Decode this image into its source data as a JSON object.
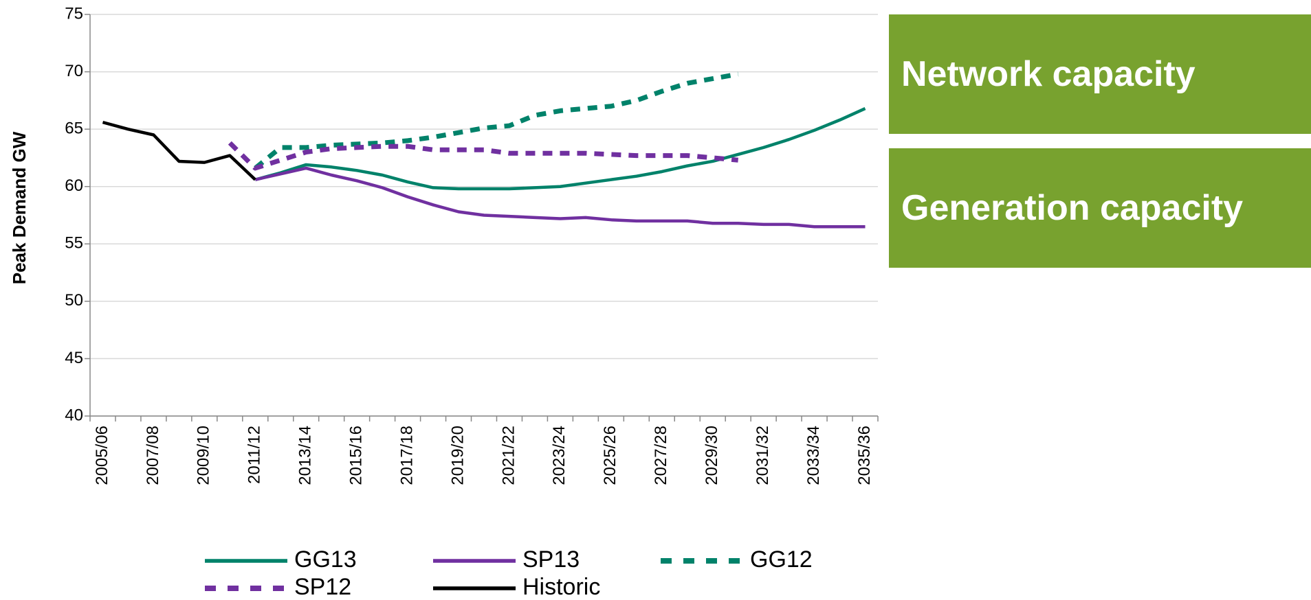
{
  "chart_data": {
    "type": "line",
    "ylabel": "Peak Demand GW",
    "categories": [
      "2005/06",
      null,
      "2007/08",
      null,
      "2009/10",
      null,
      "2011/12",
      null,
      "2013/14",
      null,
      "2015/16",
      null,
      "2017/18",
      null,
      "2019/20",
      null,
      "2021/22",
      null,
      "2023/24",
      null,
      "2025/26",
      null,
      "2027/28",
      null,
      "2029/30",
      null,
      "2031/32",
      null,
      "2033/34",
      null,
      "2035/36"
    ],
    "ylim": [
      40,
      75
    ],
    "yticks": [
      40,
      45,
      50,
      55,
      60,
      65,
      70,
      75
    ],
    "grid": true,
    "series": [
      {
        "name": "GG13",
        "color": "#00826a",
        "dashed": false,
        "values": [
          null,
          null,
          null,
          null,
          null,
          null,
          60.6,
          61.2,
          61.9,
          61.7,
          61.4,
          61.0,
          60.4,
          59.9,
          59.8,
          59.8,
          59.8,
          59.9,
          60.0,
          60.3,
          60.6,
          60.9,
          61.3,
          61.8,
          62.2,
          62.8,
          63.4,
          64.1,
          64.9,
          65.8,
          66.8
        ]
      },
      {
        "name": "SP13",
        "color": "#7030a0",
        "dashed": false,
        "values": [
          null,
          null,
          null,
          null,
          null,
          null,
          60.6,
          61.1,
          61.6,
          61.0,
          60.5,
          59.9,
          59.1,
          58.4,
          57.8,
          57.5,
          57.4,
          57.3,
          57.2,
          57.3,
          57.1,
          57.0,
          57.0,
          57.0,
          56.8,
          56.8,
          56.7,
          56.7,
          56.5,
          56.5,
          56.5
        ]
      },
      {
        "name": "GG12",
        "color": "#00826a",
        "dashed": true,
        "values": [
          null,
          null,
          null,
          null,
          null,
          null,
          61.6,
          63.4,
          63.4,
          63.6,
          63.7,
          63.8,
          64.0,
          64.3,
          64.7,
          65.1,
          65.3,
          66.2,
          66.6,
          66.8,
          67.0,
          67.5,
          68.3,
          69.0,
          69.4,
          69.8,
          null,
          null,
          null,
          null,
          null
        ]
      },
      {
        "name": "SP12",
        "color": "#7030a0",
        "dashed": true,
        "values": [
          null,
          null,
          null,
          null,
          null,
          63.8,
          61.6,
          62.3,
          63.0,
          63.3,
          63.4,
          63.5,
          63.5,
          63.2,
          63.2,
          63.2,
          62.9,
          62.9,
          62.9,
          62.9,
          62.8,
          62.7,
          62.7,
          62.7,
          62.5,
          62.3,
          null,
          null,
          null,
          null,
          null
        ]
      },
      {
        "name": "Historic",
        "color": "#000000",
        "dashed": false,
        "values": [
          65.6,
          65.0,
          64.5,
          62.2,
          62.1,
          62.7,
          60.6,
          null,
          null,
          null,
          null,
          null,
          null,
          null,
          null,
          null,
          null,
          null,
          null,
          null,
          null,
          null,
          null,
          null,
          null,
          null,
          null,
          null,
          null,
          null,
          null
        ]
      }
    ]
  },
  "panels": [
    "Network capacity",
    "Generation capacity"
  ]
}
